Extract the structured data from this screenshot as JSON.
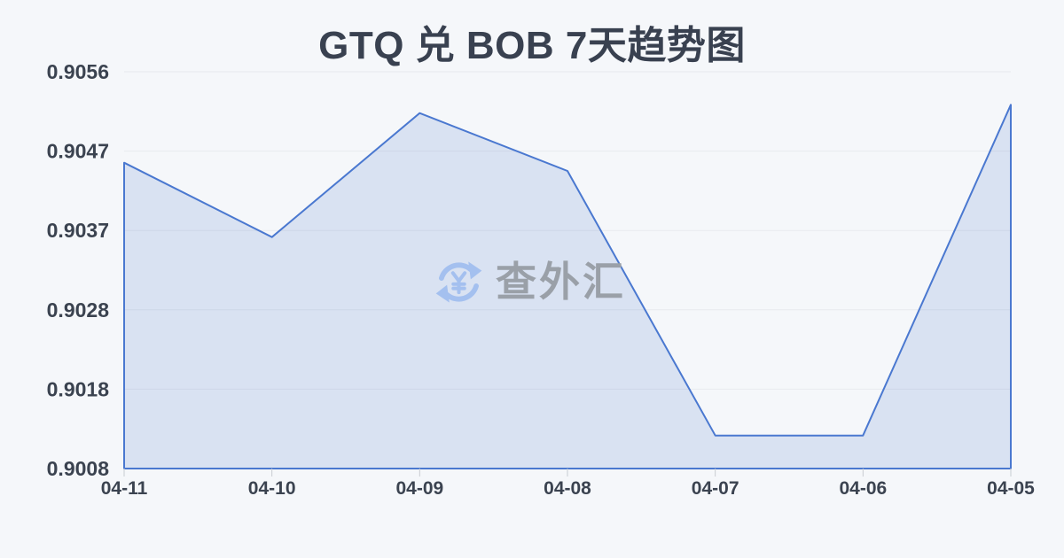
{
  "title": "GTQ 兑 BOB 7天趋势图",
  "watermark": {
    "text": "查外汇"
  },
  "colors": {
    "background": "#f5f7fa",
    "title_text": "#394150",
    "axis_label": "#3b4350",
    "line": "#4a78d0",
    "area_fill": "rgba(74,120,208,0.16)",
    "grid": "#e8eaee",
    "tick": "#c8ccd2",
    "watermark_icon": "#a4c0ef",
    "watermark_text": "#9aa0a8"
  },
  "chart_data": {
    "type": "area",
    "title": "GTQ 兑 BOB 7天趋势图",
    "categories": [
      "04-11",
      "04-10",
      "04-09",
      "04-08",
      "04-07",
      "04-06",
      "04-05"
    ],
    "values": [
      0.9045,
      0.9036,
      0.9051,
      0.9044,
      0.9012,
      0.9012,
      0.9052
    ],
    "xlabel": "",
    "ylabel": "",
    "ylim": [
      0.9008,
      0.9056
    ],
    "ytick_labels": [
      "0.9056",
      "0.9047",
      "0.9037",
      "0.9028",
      "0.9018",
      "0.9008"
    ],
    "grid": true,
    "legend": false
  }
}
